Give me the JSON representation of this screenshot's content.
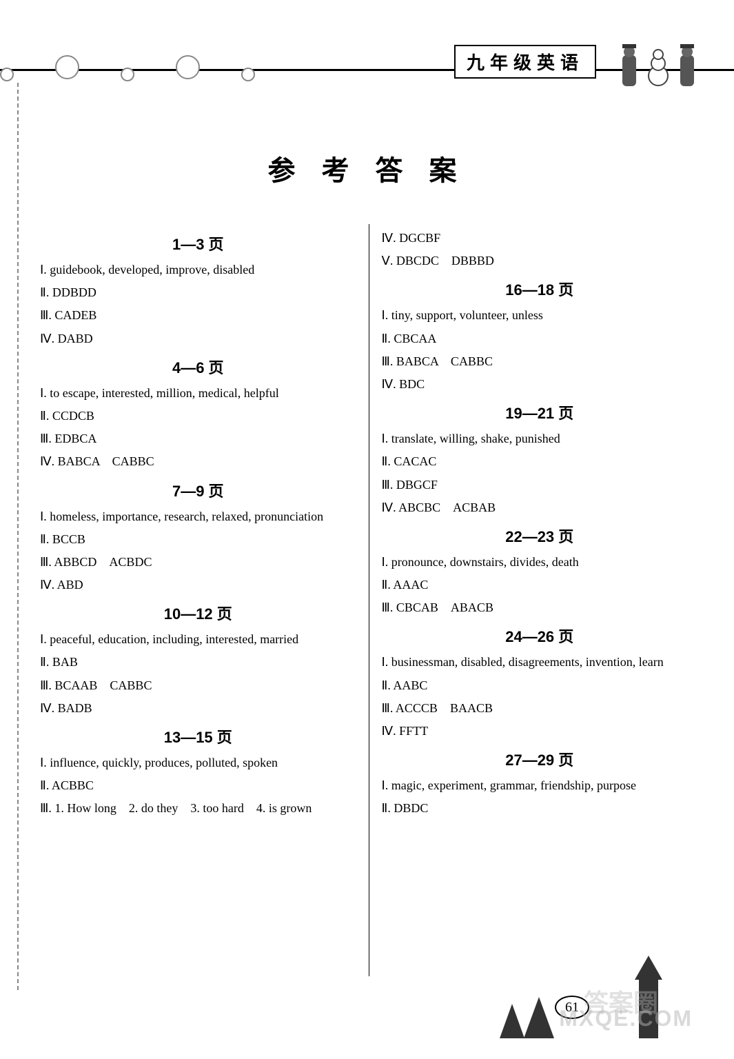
{
  "header": {
    "subject_label": "九年级英语"
  },
  "title": "参 考 答 案",
  "page_number": "61",
  "watermark_text": "MXQE.COM",
  "watermark_text2": "答案圈",
  "left_column": [
    {
      "type": "header",
      "text": "1—3 页"
    },
    {
      "type": "row",
      "text": "Ⅰ. guidebook, developed, improve, disabled"
    },
    {
      "type": "row",
      "text": "Ⅱ. DDBDD"
    },
    {
      "type": "row",
      "text": "Ⅲ. CADEB"
    },
    {
      "type": "row",
      "text": "Ⅳ. DABD"
    },
    {
      "type": "header",
      "text": "4—6 页"
    },
    {
      "type": "row",
      "text": "Ⅰ. to escape, interested, million, medical, helpful"
    },
    {
      "type": "row",
      "text": "Ⅱ. CCDCB"
    },
    {
      "type": "row",
      "text": "Ⅲ. EDBCA"
    },
    {
      "type": "row",
      "text": "Ⅳ. BABCA　CABBC"
    },
    {
      "type": "header",
      "text": "7—9 页"
    },
    {
      "type": "row",
      "text": "Ⅰ. homeless, importance, research, relaxed, pronunciation"
    },
    {
      "type": "row",
      "text": "Ⅱ. BCCB"
    },
    {
      "type": "row",
      "text": "Ⅲ. ABBCD　ACBDC"
    },
    {
      "type": "row",
      "text": "Ⅳ. ABD"
    },
    {
      "type": "header",
      "text": "10—12 页"
    },
    {
      "type": "row",
      "text": "Ⅰ. peaceful, education, including, interested, married"
    },
    {
      "type": "row",
      "text": "Ⅱ. BAB"
    },
    {
      "type": "row",
      "text": "Ⅲ. BCAAB　CABBC"
    },
    {
      "type": "row",
      "text": "Ⅳ. BADB"
    },
    {
      "type": "header",
      "text": "13—15 页"
    },
    {
      "type": "row",
      "text": "Ⅰ. influence, quickly, produces, polluted, spoken"
    },
    {
      "type": "row",
      "text": "Ⅱ. ACBBC"
    },
    {
      "type": "row",
      "text": "Ⅲ. 1. How long　2. do they　3. too hard　4. is grown"
    }
  ],
  "right_column": [
    {
      "type": "row",
      "text": "Ⅳ. DGCBF"
    },
    {
      "type": "row",
      "text": "Ⅴ. DBCDC　DBBBD"
    },
    {
      "type": "header",
      "text": "16—18 页"
    },
    {
      "type": "row",
      "text": "Ⅰ. tiny, support, volunteer, unless"
    },
    {
      "type": "row",
      "text": "Ⅱ. CBCAA"
    },
    {
      "type": "row",
      "text": "Ⅲ. BABCA　CABBC"
    },
    {
      "type": "row",
      "text": "Ⅳ. BDC"
    },
    {
      "type": "header",
      "text": "19—21 页"
    },
    {
      "type": "row",
      "text": "Ⅰ. translate, willing, shake, punished"
    },
    {
      "type": "row",
      "text": "Ⅱ. CACAC"
    },
    {
      "type": "row",
      "text": "Ⅲ. DBGCF"
    },
    {
      "type": "row",
      "text": "Ⅳ. ABCBC　ACBAB"
    },
    {
      "type": "header",
      "text": "22—23 页"
    },
    {
      "type": "row",
      "text": "Ⅰ. pronounce, downstairs, divides, death"
    },
    {
      "type": "row",
      "text": "Ⅱ. AAAC"
    },
    {
      "type": "row",
      "text": "Ⅲ. CBCAB　ABACB"
    },
    {
      "type": "header",
      "text": "24—26 页"
    },
    {
      "type": "row",
      "text": "Ⅰ. businessman, disabled, disagreements, invention, learn"
    },
    {
      "type": "row",
      "text": "Ⅱ. AABC"
    },
    {
      "type": "row",
      "text": "Ⅲ. ACCCB　BAACB"
    },
    {
      "type": "row",
      "text": "Ⅳ. FFTT"
    },
    {
      "type": "header",
      "text": "27—29 页"
    },
    {
      "type": "row",
      "text": "Ⅰ. magic, experiment, grammar, friendship, purpose"
    },
    {
      "type": "row",
      "text": "Ⅱ. DBDC"
    }
  ]
}
